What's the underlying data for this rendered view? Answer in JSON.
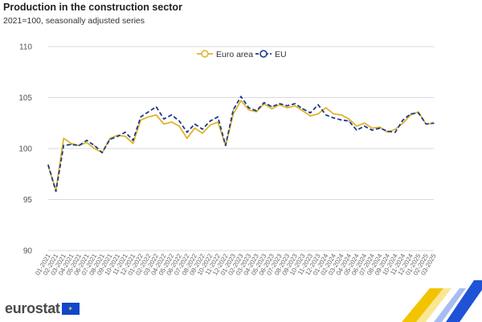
{
  "header": {
    "title": "Production in the construction sector",
    "subtitle": "2021=100, seasonally adjusted series"
  },
  "brand": {
    "logo_text": "eurostat",
    "flag_icon": "eu-flag-icon"
  },
  "chart_data": {
    "type": "line",
    "title": "Production in the construction sector",
    "subtitle": "2021=100, seasonally adjusted series",
    "ylim": [
      90,
      110
    ],
    "yticks": [
      "90",
      "95",
      "100",
      "105",
      "110"
    ],
    "grid": true,
    "legend_position": "top-center",
    "x": [
      "01-2021",
      "02-2021",
      "03-2021",
      "04-2021",
      "05-2021",
      "06-2021",
      "07-2021",
      "08-2021",
      "09-2021",
      "10-2021",
      "11-2021",
      "12-2021",
      "01-2022",
      "02-2022",
      "03-2022",
      "04-2022",
      "05-2022",
      "06-2022",
      "07-2022",
      "08-2022",
      "09-2022",
      "10-2022",
      "11-2022",
      "12-2022",
      "01-2023",
      "02-2023",
      "03-2023",
      "04-2023",
      "05-2023",
      "06-2023",
      "07-2023",
      "08-2023",
      "09-2023",
      "10-2023",
      "11-2023",
      "12-2023",
      "01-2024",
      "02-2024",
      "03-2024",
      "04-2024",
      "05-2024",
      "06-2024",
      "07-2024",
      "08-2024",
      "09-2024",
      "10-2024",
      "11-2024",
      "12-2024",
      "01-2025",
      "02-2025",
      "03-2025"
    ],
    "series": [
      {
        "name": "Euro area",
        "color": "#e0b42a",
        "dash": "solid",
        "values": [
          98.3,
          95.9,
          101.0,
          100.5,
          100.3,
          100.6,
          100.0,
          99.6,
          101.0,
          101.3,
          101.2,
          100.5,
          102.8,
          103.1,
          103.3,
          102.4,
          102.6,
          102.2,
          101.0,
          102.0,
          101.5,
          102.3,
          102.6,
          100.3,
          103.4,
          104.7,
          103.8,
          103.6,
          104.4,
          103.9,
          104.3,
          104.0,
          104.2,
          103.7,
          103.2,
          103.4,
          104.0,
          103.4,
          103.3,
          102.9,
          102.2,
          102.5,
          102.0,
          102.1,
          101.6,
          101.9,
          102.5,
          103.3,
          103.6,
          102.4,
          102.5
        ]
      },
      {
        "name": "EU",
        "color": "#1c3a8c",
        "dash": "dashed",
        "values": [
          98.4,
          95.8,
          100.3,
          100.4,
          100.3,
          100.8,
          100.3,
          99.6,
          100.9,
          101.2,
          101.6,
          100.8,
          103.1,
          103.6,
          104.1,
          102.9,
          103.3,
          102.7,
          101.6,
          102.4,
          101.9,
          102.7,
          103.1,
          100.3,
          103.8,
          105.1,
          104.0,
          103.7,
          104.5,
          104.1,
          104.4,
          104.2,
          104.4,
          103.9,
          103.5,
          104.3,
          103.3,
          103.0,
          102.8,
          102.7,
          101.8,
          102.2,
          101.8,
          102.0,
          101.7,
          101.6,
          102.8,
          103.4,
          103.5,
          102.4,
          102.5
        ]
      }
    ]
  }
}
